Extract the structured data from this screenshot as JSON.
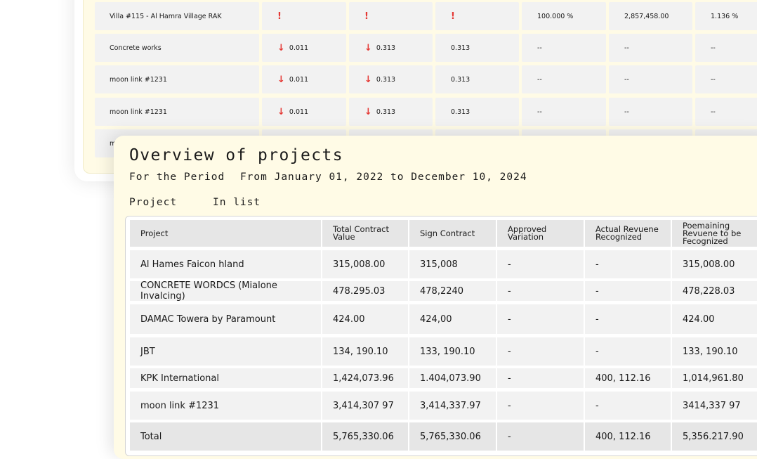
{
  "background_table": {
    "rows": [
      {
        "name": "Villa #115 - Al Hamra Village RAK",
        "c1": "!",
        "c2": "!",
        "c3": "!",
        "c4": "100.000 %",
        "c5": "2,857,458.00",
        "c6": "1.136 %"
      },
      {
        "name": "Concrete works",
        "c1": "0.011",
        "c2": "0.313",
        "c3": "0.313",
        "c4": "--",
        "c5": "--",
        "c6": "--"
      },
      {
        "name": "moon link #1231",
        "c1": "0.011",
        "c2": "0.313",
        "c3": "0.313",
        "c4": "--",
        "c5": "--",
        "c6": "--"
      },
      {
        "name": "moon link #1231",
        "c1": "0.011",
        "c2": "0.313",
        "c3": "0.313",
        "c4": "--",
        "c5": "--",
        "c6": "--"
      },
      {
        "name": "m"
      }
    ]
  },
  "report": {
    "title": "Overview of projects",
    "period_label": "For the Period",
    "period_value": "From January 01, 2022 to December 10, 2024",
    "filter_label": "Project",
    "filter_value": "In list"
  },
  "table": {
    "headers": [
      "Project",
      "Total Contract Value",
      "Sign Contract",
      "Approved Variation",
      "Actual Revuene Recognized",
      "Poemaining Revuene to be Fecognized"
    ],
    "rows": [
      [
        "Al Hames Faicon hland",
        "315,008.00",
        "315,008",
        "-",
        "-",
        "315,008.00"
      ],
      [
        "CONCRETE WORDCS (Mialone Invalcing)",
        "478.295.03",
        "478,2240",
        "-",
        "-",
        "478,228.03"
      ],
      [
        "DAMAC Towera by Paramount",
        "424.00",
        "424,00",
        "-",
        "-",
        "424.00"
      ],
      [
        "JBT",
        "134, 190.10",
        "133, 190.10",
        "-",
        "-",
        "133, 190.10"
      ],
      [
        "KPK International",
        "1,424,073.96",
        "1.404,073.90",
        "-",
        "400, 112.16",
        "1,014,961.80"
      ],
      [
        "moon link #1231",
        "3,414,307 97",
        "3,414,337.97",
        "-",
        "-",
        "3414,337 97"
      ]
    ],
    "total": [
      "Total",
      "5,765,330.06",
      "5,765,330.06",
      "-",
      "400, 112.16",
      "5,356.217.90"
    ]
  }
}
